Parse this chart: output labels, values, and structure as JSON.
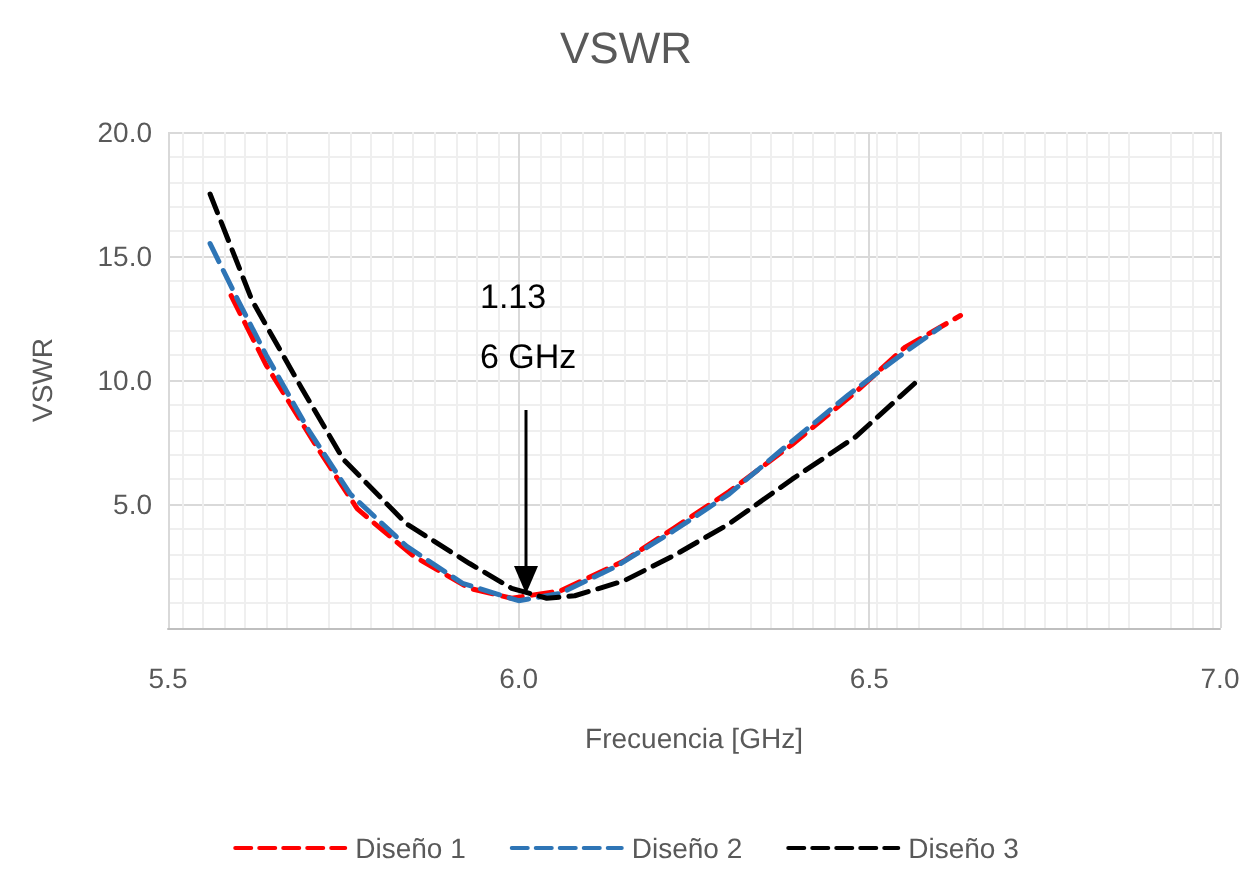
{
  "chart_data": {
    "type": "line",
    "title": "VSWR",
    "xlabel": "Frecuencia [GHz]",
    "ylabel": "VSWR",
    "xlim": [
      5.5,
      7.0
    ],
    "xticks": [
      {
        "value": 5.5,
        "label": "5.5"
      },
      {
        "value": 6.0,
        "label": "6.0"
      },
      {
        "value": 6.5,
        "label": "6.5"
      },
      {
        "value": 7.0,
        "label": "7.0"
      }
    ],
    "ylim": [
      0,
      20
    ],
    "yticks": [
      {
        "value": 5,
        "label": "5.0"
      },
      {
        "value": 10,
        "label": "10.0"
      },
      {
        "value": 15,
        "label": "15.0"
      },
      {
        "value": 20,
        "label": "20.0"
      }
    ],
    "grid": true,
    "legend": "bottom",
    "marker": "none",
    "line_style": "dashed",
    "annotations": [
      "1.13",
      "6 GHz"
    ],
    "series": [
      {
        "name": "Diseño 1",
        "color": "#ff0000",
        "x": [
          5.59,
          5.64,
          5.71,
          5.77,
          5.85,
          5.93,
          5.99,
          6.06,
          6.15,
          6.22,
          6.3,
          6.39,
          6.48,
          6.55,
          6.63
        ],
        "values": [
          13.4,
          10.6,
          7.4,
          4.8,
          2.9,
          1.6,
          1.2,
          1.5,
          2.7,
          4.0,
          5.5,
          7.4,
          9.5,
          11.3,
          12.6
        ]
      },
      {
        "name": "Diseño 2",
        "color": "#2e75b6",
        "x": [
          5.56,
          5.6,
          5.64,
          5.7,
          5.76,
          5.84,
          5.92,
          6.0,
          6.06,
          6.14,
          6.22,
          6.3,
          6.38,
          6.47,
          6.54,
          6.6
        ],
        "values": [
          15.5,
          13.2,
          11.0,
          8.0,
          5.4,
          3.3,
          1.8,
          1.1,
          1.4,
          2.5,
          3.9,
          5.4,
          7.3,
          9.4,
          10.9,
          12.1
        ]
      },
      {
        "name": "Diseño 3",
        "color": "#000000",
        "x": [
          5.56,
          5.62,
          5.69,
          5.75,
          5.84,
          5.93,
          5.99,
          6.04,
          6.08,
          6.15,
          6.22,
          6.3,
          6.39,
          6.48,
          6.57
        ],
        "values": [
          17.5,
          13.2,
          9.7,
          6.8,
          4.2,
          2.6,
          1.6,
          1.2,
          1.3,
          1.9,
          2.9,
          4.2,
          6.0,
          7.7,
          10.0
        ]
      }
    ]
  }
}
